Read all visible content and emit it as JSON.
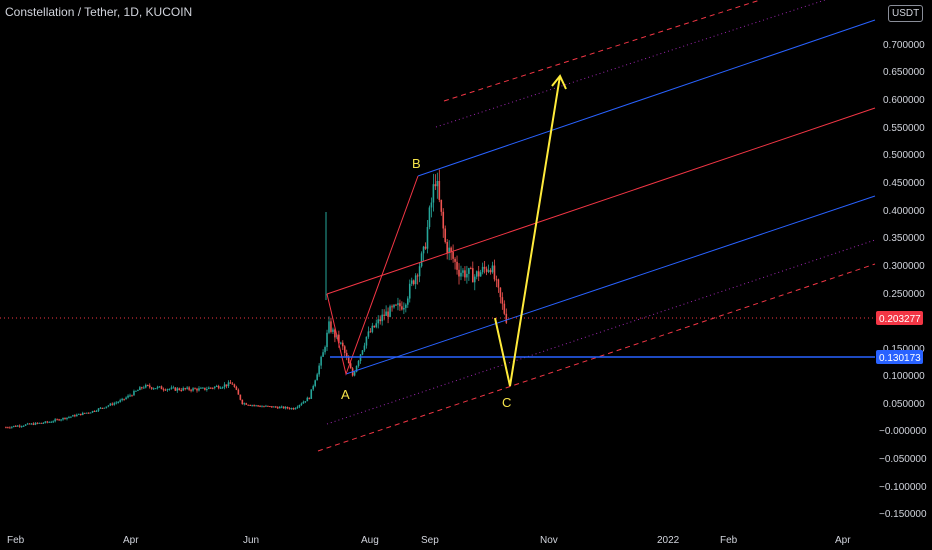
{
  "header": {
    "symbol_title": "Constellation / Tether, 1D, KUCOIN",
    "unit": "USDT"
  },
  "colors": {
    "background": "#000000",
    "up_candle": "#26a69a",
    "down_candle": "#ef5350",
    "pitchfork_median": "#f23645",
    "pitchfork_inner": "#2962ff",
    "projection": "#ffeb3b",
    "last_price": "#f23645",
    "horizontal_line": "#2962ff"
  },
  "chart_data": {
    "type": "candlestick",
    "title": "Constellation / Tether, 1D, KUCOIN",
    "x_axis": {
      "tick_labels": [
        "Feb",
        "Apr",
        "Jun",
        "Aug",
        "Sep",
        "Nov",
        "2022",
        "Feb",
        "Apr"
      ]
    },
    "y_axis": {
      "range": [
        -0.17,
        0.82
      ],
      "tick_labels": [
        "0.700000",
        "0.650000",
        "0.600000",
        "0.550000",
        "0.500000",
        "0.450000",
        "0.400000",
        "0.350000",
        "0.300000",
        "0.250000",
        "0.150000",
        "0.100000",
        "0.050000",
        "−0.000000",
        "−0.050000",
        "−0.100000",
        "−0.150000"
      ],
      "tick_values": [
        0.7,
        0.65,
        0.6,
        0.55,
        0.5,
        0.45,
        0.4,
        0.35,
        0.3,
        0.25,
        0.15,
        0.1,
        0.05,
        0.0,
        -0.05,
        -0.1,
        -0.15
      ]
    },
    "grid": false,
    "price_tags": [
      {
        "label": "0.203277",
        "value": 0.203277,
        "color": "#f23645"
      },
      {
        "label": "0.130173",
        "value": 0.130173,
        "color": "#2962ff"
      }
    ],
    "price_path": [
      {
        "date": "2021-01-25",
        "price": 0.006
      },
      {
        "date": "2021-02-15",
        "price": 0.015
      },
      {
        "date": "2021-03-10",
        "price": 0.035
      },
      {
        "date": "2021-03-25",
        "price": 0.055
      },
      {
        "date": "2021-04-05",
        "price": 0.08
      },
      {
        "date": "2021-04-20",
        "price": 0.075
      },
      {
        "date": "2021-05-05",
        "price": 0.075
      },
      {
        "date": "2021-05-20",
        "price": 0.085
      },
      {
        "date": "2021-05-25",
        "price": 0.05
      },
      {
        "date": "2021-06-01",
        "price": 0.045
      },
      {
        "date": "2021-06-20",
        "price": 0.04
      },
      {
        "date": "2021-06-28",
        "price": 0.06
      },
      {
        "date": "2021-07-05",
        "price": 0.14
      },
      {
        "date": "2021-07-08",
        "price": 0.19
      },
      {
        "date": "2021-07-15",
        "price": 0.15
      },
      {
        "date": "2021-07-20",
        "price": 0.1
      },
      {
        "date": "2021-07-27",
        "price": 0.17
      },
      {
        "date": "2021-08-05",
        "price": 0.21
      },
      {
        "date": "2021-08-15",
        "price": 0.23
      },
      {
        "date": "2021-08-25",
        "price": 0.32
      },
      {
        "date": "2021-08-31",
        "price": 0.46
      },
      {
        "date": "2021-09-05",
        "price": 0.34
      },
      {
        "date": "2021-09-12",
        "price": 0.29
      },
      {
        "date": "2021-09-20",
        "price": 0.28
      },
      {
        "date": "2021-09-28",
        "price": 0.3
      },
      {
        "date": "2021-10-02",
        "price": 0.25
      },
      {
        "date": "2021-10-06",
        "price": 0.203
      }
    ],
    "wave_points": [
      {
        "label": "A",
        "date": "2021-07-20",
        "price": 0.1
      },
      {
        "label": "B",
        "date": "2021-08-31",
        "price": 0.46
      },
      {
        "label": "C",
        "date": "2021-10-19",
        "price": 0.08
      }
    ],
    "projection_target": {
      "date": "2021-11-15",
      "price": 0.65
    }
  }
}
